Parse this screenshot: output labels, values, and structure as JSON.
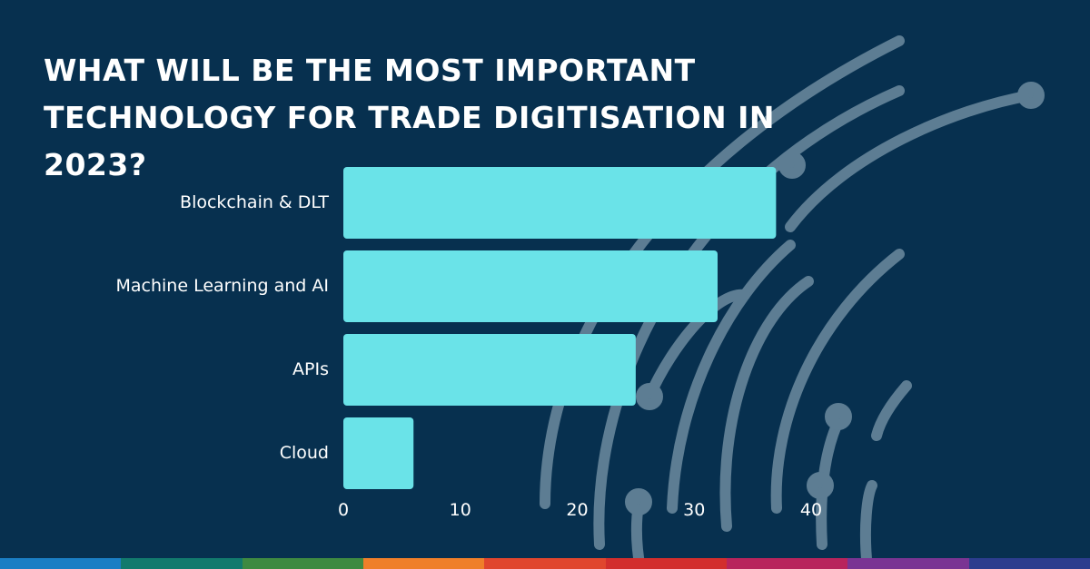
{
  "chart_data": {
    "type": "bar",
    "orientation": "horizontal",
    "title": "WHAT WILL BE THE MOST IMPORTANT TECHNOLOGY FOR TRADE DIGITISATION IN 2023?",
    "categories": [
      "Blockchain & DLT",
      "Machine Learning and AI",
      "APIs",
      "Cloud"
    ],
    "values": [
      37,
      32,
      25,
      6
    ],
    "xlim": [
      0,
      40
    ],
    "x_ticks": [
      0,
      10,
      20,
      30,
      40
    ],
    "xlabel": "",
    "ylabel": "",
    "grid": false,
    "legend": "none",
    "bar_color": "#6ae3e8"
  },
  "theme": {
    "background": "#07304f",
    "text": "#ffffff",
    "decoration": "#5d7d93"
  },
  "bottom_strip_colors": [
    "#1a7ec4",
    "#127a6d",
    "#3e8a41",
    "#ef7f2a",
    "#e0462e",
    "#d22e2d",
    "#b8245c",
    "#7a3493",
    "#2c3d8e"
  ]
}
